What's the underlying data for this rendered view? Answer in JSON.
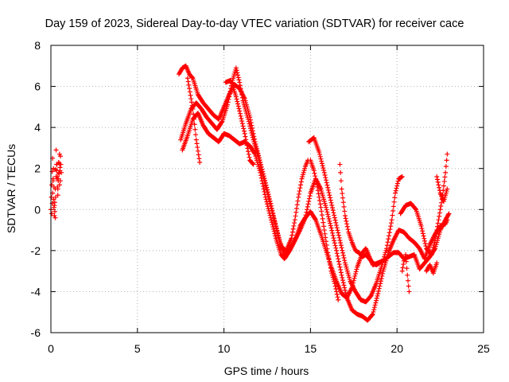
{
  "chart_data": {
    "type": "scatter",
    "title": "Day 159 of 2023, Sidereal Day-to-day VTEC variation (SDTVAR) for receiver cace",
    "xlabel": "GPS time / hours",
    "ylabel": "SDTVAR / TECUs",
    "xlim": [
      0,
      25
    ],
    "ylim": [
      -6,
      8
    ],
    "xticks": [
      0,
      5,
      10,
      15,
      20,
      25
    ],
    "yticks": [
      -6,
      -4,
      -2,
      0,
      2,
      4,
      6,
      8
    ],
    "x_tick_labels": [
      "0",
      "5",
      "10",
      "15",
      "20",
      "25"
    ],
    "y_tick_labels": [
      "-6",
      "-4",
      "-2",
      "0",
      "2",
      "4",
      "6",
      "8"
    ],
    "grid": true,
    "marker": "plus",
    "color": "#ff0000",
    "series": [
      {
        "segments": [
          [
            [
              0.0,
              0.0
            ],
            [
              0.05,
              1.2
            ],
            [
              0.1,
              2.5
            ],
            [
              0.15,
              0.5
            ],
            [
              0.2,
              -0.3
            ],
            [
              0.25,
              1.0
            ],
            [
              0.3,
              2.9
            ],
            [
              0.35,
              1.5
            ],
            [
              0.4,
              0.7
            ],
            [
              0.45,
              2.3
            ],
            [
              0.5,
              1.2
            ],
            [
              0.55,
              2.6
            ],
            [
              0.6,
              1.8
            ]
          ],
          [
            [
              0.05,
              -0.2
            ],
            [
              0.1,
              0.8
            ],
            [
              0.15,
              2.0
            ],
            [
              0.2,
              0.2
            ],
            [
              0.25,
              -0.4
            ],
            [
              0.3,
              1.6
            ],
            [
              0.35,
              2.2
            ],
            [
              0.4,
              1.0
            ],
            [
              0.45,
              1.8
            ],
            [
              0.5,
              2.7
            ],
            [
              0.55,
              1.4
            ]
          ],
          [
            [
              7.4,
              6.6
            ],
            [
              7.6,
              6.9
            ],
            [
              7.8,
              7.0
            ],
            [
              8.0,
              6.6
            ],
            [
              8.2,
              6.4
            ],
            [
              8.5,
              5.6
            ],
            [
              8.8,
              5.2
            ],
            [
              9.1,
              4.9
            ],
            [
              9.4,
              4.6
            ],
            [
              9.7,
              4.4
            ],
            [
              10.0,
              5.0
            ],
            [
              10.3,
              5.6
            ],
            [
              10.6,
              6.1
            ],
            [
              10.9,
              5.9
            ],
            [
              11.2,
              5.4
            ],
            [
              11.5,
              4.5
            ],
            [
              11.8,
              3.3
            ],
            [
              12.1,
              2.3
            ],
            [
              12.4,
              1.3
            ],
            [
              12.7,
              0.3
            ],
            [
              13.0,
              -0.8
            ],
            [
              13.3,
              -1.8
            ],
            [
              13.6,
              -2.0
            ],
            [
              13.9,
              -1.4
            ],
            [
              14.1,
              -0.5
            ],
            [
              14.3,
              0.6
            ],
            [
              14.5,
              1.5
            ],
            [
              14.7,
              2.1
            ],
            [
              14.85,
              2.4
            ]
          ],
          [
            [
              7.5,
              3.4
            ],
            [
              7.8,
              4.2
            ],
            [
              8.1,
              4.9
            ],
            [
              8.4,
              5.2
            ],
            [
              8.7,
              4.9
            ],
            [
              9.0,
              4.5
            ],
            [
              9.3,
              4.2
            ],
            [
              9.6,
              3.9
            ],
            [
              9.9,
              4.3
            ],
            [
              10.2,
              5.1
            ],
            [
              10.5,
              6.3
            ],
            [
              10.7,
              6.9
            ],
            [
              10.9,
              6.2
            ],
            [
              11.1,
              5.3
            ],
            [
              11.4,
              4.4
            ],
            [
              11.7,
              3.4
            ],
            [
              12.0,
              2.5
            ],
            [
              12.3,
              1.5
            ],
            [
              12.6,
              0.5
            ],
            [
              12.9,
              -0.5
            ],
            [
              13.2,
              -1.5
            ],
            [
              13.5,
              -2.2
            ],
            [
              13.8,
              -2.0
            ],
            [
              14.1,
              -1.5
            ],
            [
              14.4,
              -1.0
            ],
            [
              14.7,
              -0.4
            ],
            [
              15.0,
              0.8
            ],
            [
              15.3,
              1.5
            ],
            [
              15.6,
              1.0
            ],
            [
              15.9,
              0.1
            ],
            [
              16.2,
              -0.9
            ],
            [
              16.5,
              -2.0
            ],
            [
              16.8,
              -3.2
            ],
            [
              17.1,
              -4.3
            ],
            [
              17.4,
              -4.9
            ],
            [
              17.7,
              -5.1
            ],
            [
              18.0,
              -5.2
            ],
            [
              18.3,
              -5.4
            ],
            [
              18.6,
              -5.1
            ],
            [
              18.9,
              -4.1
            ],
            [
              19.2,
              -3.0
            ],
            [
              19.5,
              -2.1
            ],
            [
              19.8,
              -1.5
            ],
            [
              20.1,
              -1.0
            ],
            [
              20.4,
              -1.1
            ],
            [
              20.7,
              -1.4
            ],
            [
              21.0,
              -1.6
            ],
            [
              21.3,
              -1.9
            ],
            [
              21.6,
              -2.4
            ],
            [
              21.9,
              -1.7
            ],
            [
              22.2,
              -1.2
            ],
            [
              22.5,
              -0.8
            ],
            [
              22.8,
              -0.7
            ],
            [
              22.9,
              -0.5
            ]
          ],
          [
            [
              7.6,
              2.9
            ],
            [
              7.9,
              3.6
            ],
            [
              8.2,
              4.4
            ],
            [
              8.5,
              4.7
            ],
            [
              8.8,
              4.1
            ],
            [
              9.1,
              3.7
            ],
            [
              9.4,
              3.5
            ],
            [
              9.7,
              3.3
            ],
            [
              10.0,
              3.7
            ],
            [
              10.3,
              3.6
            ],
            [
              10.6,
              3.4
            ],
            [
              10.9,
              3.2
            ],
            [
              11.2,
              3.3
            ],
            [
              11.5,
              3.1
            ],
            [
              11.8,
              2.7
            ],
            [
              12.1,
              1.8
            ],
            [
              12.4,
              0.6
            ],
            [
              12.7,
              -0.4
            ],
            [
              13.0,
              -1.4
            ],
            [
              13.3,
              -2.2
            ],
            [
              13.5,
              -2.4
            ],
            [
              13.8,
              -2.0
            ],
            [
              14.1,
              -1.5
            ],
            [
              14.4,
              -0.8
            ],
            [
              14.7,
              -0.4
            ],
            [
              15.0,
              -0.1
            ],
            [
              15.3,
              -0.5
            ],
            [
              15.6,
              -1.2
            ],
            [
              15.9,
              -2.0
            ],
            [
              16.2,
              -2.8
            ],
            [
              16.5,
              -3.5
            ],
            [
              16.8,
              -4.1
            ],
            [
              17.1,
              -4.3
            ],
            [
              17.4,
              -3.8
            ],
            [
              17.7,
              -2.8
            ],
            [
              18.0,
              -2.1
            ],
            [
              18.2,
              -1.9
            ],
            [
              18.4,
              -2.3
            ],
            [
              18.6,
              -2.7
            ],
            [
              18.9,
              -2.6
            ],
            [
              19.2,
              -2.5
            ],
            [
              19.5,
              -2.3
            ],
            [
              19.8,
              -2.1
            ],
            [
              20.1,
              -2.1
            ],
            [
              20.4,
              -2.4
            ],
            [
              20.7,
              -2.3
            ],
            [
              21.0,
              -2.2
            ],
            [
              21.3,
              -2.9
            ],
            [
              21.6,
              -2.6
            ],
            [
              21.9,
              -2.3
            ],
            [
              22.2,
              -1.9
            ],
            [
              22.5,
              -1.0
            ],
            [
              22.8,
              -0.5
            ],
            [
              23.0,
              -0.2
            ]
          ],
          [
            [
              7.9,
              6.4
            ],
            [
              8.2,
              4.9
            ],
            [
              8.4,
              3.4
            ],
            [
              8.6,
              2.3
            ]
          ],
          [
            [
              10.1,
              6.2
            ],
            [
              10.4,
              6.3
            ],
            [
              10.7,
              5.5
            ],
            [
              10.9,
              4.8
            ],
            [
              11.2,
              3.7
            ],
            [
              11.5,
              2.4
            ],
            [
              11.7,
              2.2
            ]
          ],
          [
            [
              14.9,
              3.3
            ],
            [
              15.2,
              3.5
            ],
            [
              15.5,
              2.8
            ],
            [
              15.8,
              1.8
            ],
            [
              16.1,
              0.7
            ],
            [
              16.4,
              -0.4
            ],
            [
              16.7,
              -1.5
            ],
            [
              17.0,
              -2.6
            ],
            [
              17.3,
              -3.5
            ],
            [
              17.6,
              -4.0
            ],
            [
              17.9,
              -4.4
            ],
            [
              18.2,
              -4.5
            ],
            [
              18.5,
              -4.2
            ],
            [
              18.8,
              -3.6
            ],
            [
              19.1,
              -2.8
            ],
            [
              19.4,
              -1.9
            ],
            [
              19.7,
              -0.5
            ],
            [
              19.9,
              0.8
            ],
            [
              20.1,
              1.5
            ],
            [
              20.3,
              1.6
            ]
          ],
          [
            [
              16.7,
              2.2
            ],
            [
              16.8,
              1.0
            ],
            [
              17.0,
              -0.3
            ],
            [
              17.2,
              -1.1
            ],
            [
              17.4,
              -1.6
            ],
            [
              17.6,
              -2.0
            ],
            [
              17.8,
              -2.1
            ],
            [
              18.0,
              -2.3
            ],
            [
              18.2,
              -2.2
            ],
            [
              18.4,
              -2.4
            ],
            [
              18.6,
              -2.6
            ],
            [
              18.8,
              -2.7
            ],
            [
              19.0,
              -2.6
            ]
          ],
          [
            [
              15.0,
              2.4
            ],
            [
              15.2,
              1.9
            ],
            [
              15.4,
              1.1
            ],
            [
              15.6,
              0.1
            ],
            [
              15.8,
              -1.0
            ],
            [
              16.0,
              -2.1
            ],
            [
              16.2,
              -3.0
            ],
            [
              16.4,
              -3.6
            ],
            [
              16.6,
              -4.4
            ]
          ],
          [
            [
              20.3,
              -3.0
            ],
            [
              20.4,
              -2.5
            ],
            [
              20.5,
              -2.2
            ],
            [
              20.6,
              -3.2
            ],
            [
              20.7,
              -4.0
            ]
          ],
          [
            [
              20.2,
              -0.2
            ],
            [
              20.5,
              0.2
            ],
            [
              20.8,
              0.3
            ],
            [
              21.1,
              0.0
            ],
            [
              21.4,
              -0.8
            ],
            [
              21.7,
              -1.9
            ],
            [
              22.0,
              -2.2
            ],
            [
              22.2,
              -1.5
            ],
            [
              22.4,
              -0.5
            ],
            [
              22.6,
              0.5
            ],
            [
              22.8,
              1.8
            ],
            [
              22.9,
              2.7
            ]
          ],
          [
            [
              22.3,
              1.6
            ],
            [
              22.5,
              0.8
            ],
            [
              22.7,
              0.4
            ],
            [
              22.9,
              1.0
            ]
          ],
          [
            [
              21.7,
              -3.0
            ],
            [
              21.9,
              -2.7
            ],
            [
              22.1,
              -3.1
            ],
            [
              22.3,
              -2.6
            ]
          ]
        ]
      }
    ]
  }
}
